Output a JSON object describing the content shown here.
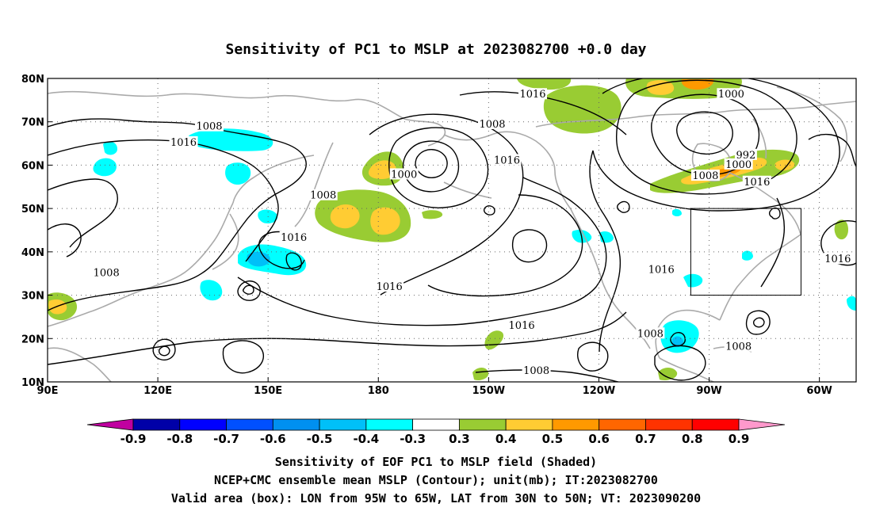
{
  "title": "Sensitivity of PC1 to MSLP at 2023082700 +0.0 day",
  "map": {
    "lon_range": [
      90,
      310
    ],
    "lat_range": [
      10,
      80
    ],
    "lon_ticks": [
      {
        "lon": 90,
        "label": "90E"
      },
      {
        "lon": 120,
        "label": "120E"
      },
      {
        "lon": 150,
        "label": "150E"
      },
      {
        "lon": 180,
        "label": "180"
      },
      {
        "lon": 210,
        "label": "150W"
      },
      {
        "lon": 240,
        "label": "120W"
      },
      {
        "lon": 270,
        "label": "90W"
      },
      {
        "lon": 300,
        "label": "60W"
      }
    ],
    "lat_ticks": [
      {
        "lat": 10,
        "label": "10N"
      },
      {
        "lat": 20,
        "label": "20N"
      },
      {
        "lat": 30,
        "label": "30N"
      },
      {
        "lat": 40,
        "label": "40N"
      },
      {
        "lat": 50,
        "label": "50N"
      },
      {
        "lat": 60,
        "label": "60N"
      },
      {
        "lat": 70,
        "label": "70N"
      },
      {
        "lat": 80,
        "label": "80N"
      }
    ],
    "gridlines": "dotted",
    "coastline_color": "#aaaaaa",
    "contour_color": "#000000",
    "valid_box": {
      "lon_min": 265,
      "lon_max": 295,
      "lat_min": 30,
      "lat_max": 50
    },
    "contour_labels": [
      {
        "text": "1016",
        "lon": 222,
        "lat": 76.3
      },
      {
        "text": "1000",
        "lon": 276,
        "lat": 76.3
      },
      {
        "text": "1008",
        "lon": 134,
        "lat": 68.9
      },
      {
        "text": "1016",
        "lon": 127,
        "lat": 65.2
      },
      {
        "text": "1008",
        "lon": 211,
        "lat": 69.4
      },
      {
        "text": "992",
        "lon": 280,
        "lat": 62.3
      },
      {
        "text": "1000",
        "lon": 278,
        "lat": 60.1
      },
      {
        "text": "1016",
        "lon": 215,
        "lat": 61.1
      },
      {
        "text": "1000",
        "lon": 187,
        "lat": 57.8
      },
      {
        "text": "1008",
        "lon": 269,
        "lat": 57.5
      },
      {
        "text": "1016",
        "lon": 283,
        "lat": 56.1
      },
      {
        "text": "1008",
        "lon": 165,
        "lat": 53.0
      },
      {
        "text": "1016",
        "lon": 157,
        "lat": 43.3
      },
      {
        "text": "1016",
        "lon": 257,
        "lat": 35.9
      },
      {
        "text": "1016",
        "lon": 305,
        "lat": 38.3
      },
      {
        "text": "1008",
        "lon": 106,
        "lat": 35.1
      },
      {
        "text": "1016",
        "lon": 183,
        "lat": 31.9
      },
      {
        "text": "1016",
        "lon": 219,
        "lat": 23.0
      },
      {
        "text": "1008",
        "lon": 254,
        "lat": 21.1
      },
      {
        "text": "1008",
        "lon": 278,
        "lat": 18.1
      },
      {
        "text": "1008",
        "lon": 223,
        "lat": 12.6
      }
    ]
  },
  "colorbar": {
    "colors": [
      "#c000a0",
      "#0000a8",
      "#0000ff",
      "#0050ff",
      "#0090f0",
      "#00c0f8",
      "#00ffff",
      "#ffffff",
      "#99cc33",
      "#ffcc33",
      "#ff9900",
      "#ff6600",
      "#ff3300",
      "#ff0000",
      "#ff99cc"
    ],
    "labels": [
      "-0.9",
      "-0.8",
      "-0.7",
      "-0.6",
      "-0.5",
      "-0.4",
      "-0.3",
      "0.3",
      "0.4",
      "0.5",
      "0.6",
      "0.7",
      "0.8",
      "0.9"
    ]
  },
  "captions": [
    "Sensitivity of EOF PC1 to MSLP field (Shaded)",
    "NCEP+CMC ensemble mean MSLP (Contour); unit(mb); IT:2023082700",
    "Valid area (box): LON from 95W to 65W, LAT from 30N to 50N; VT: 2023090200"
  ]
}
